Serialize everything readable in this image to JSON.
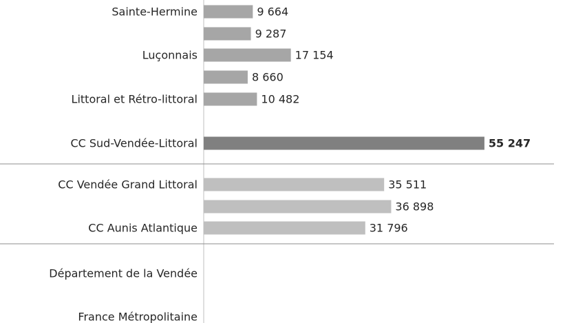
{
  "chart_data": {
    "type": "bar",
    "orientation": "horizontal",
    "categories": [
      "Sainte-Hermine",
      null,
      "Luçonnais",
      null,
      "Littoral et Rétro-littoral",
      "CC Sud-Vendée-Littoral",
      "CC Vendée Grand Littoral",
      null,
      "CC Aunis Atlantique",
      "Département de la Vendée",
      "France Métropolitaine"
    ],
    "values": [
      9664,
      9287,
      17154,
      8660,
      10482,
      55247,
      35511,
      36898,
      31796,
      null,
      null
    ],
    "value_labels": [
      "9 664",
      "9 287",
      "17 154",
      "8 660",
      "10 482",
      "55 247",
      "35 511",
      "36 898",
      "31 796",
      null,
      null
    ],
    "colors": [
      "#a6a6a6",
      "#a6a6a6",
      "#a6a6a6",
      "#a6a6a6",
      "#a6a6a6",
      "#808080",
      "#bfbfbf",
      "#bfbfbf",
      "#bfbfbf",
      "#bfbfbf",
      "#bfbfbf"
    ],
    "xlim": [
      0,
      60000
    ]
  }
}
